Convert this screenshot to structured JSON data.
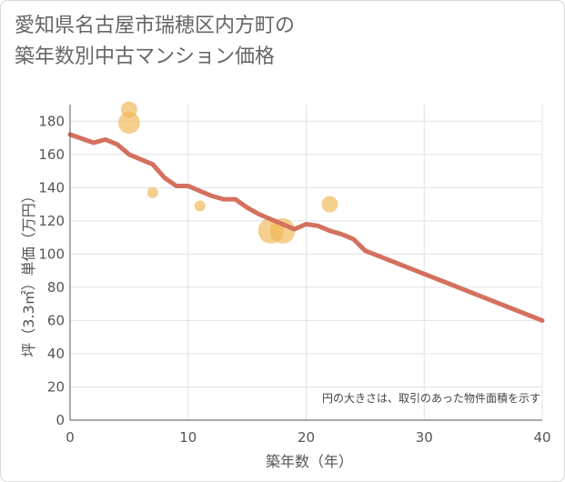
{
  "title_line1": "愛知県名古屋市瑞穂区内方町の",
  "title_line2": "築年数別中古マンション価格",
  "chart_data": {
    "type": "scatter",
    "title": "愛知県名古屋市瑞穂区内方町の築年数別中古マンション価格",
    "xlabel": "築年数（年）",
    "ylabel": "坪（3.3㎡）単価（万円）",
    "xlim": [
      0,
      40
    ],
    "ylim": [
      0,
      190
    ],
    "xticks": [
      0,
      10,
      20,
      30,
      40
    ],
    "yticks": [
      0,
      20,
      40,
      60,
      80,
      100,
      120,
      140,
      160,
      180
    ],
    "grid": true,
    "note": "円の大きさは、取引のあった物件面積を示す",
    "bubbles": [
      {
        "x": 5,
        "y": 187,
        "size": 2
      },
      {
        "x": 5,
        "y": 179,
        "size": 3
      },
      {
        "x": 7,
        "y": 137,
        "size": 1
      },
      {
        "x": 11,
        "y": 129,
        "size": 1
      },
      {
        "x": 17,
        "y": 114,
        "size": 4
      },
      {
        "x": 18,
        "y": 114,
        "size": 4
      },
      {
        "x": 22,
        "y": 130,
        "size": 2
      }
    ],
    "trend": {
      "x": [
        0,
        2,
        3,
        4,
        5,
        6,
        7,
        8,
        9,
        10,
        11,
        12,
        13,
        14,
        15,
        16,
        17,
        18,
        19,
        20,
        21,
        22,
        23,
        24,
        25,
        40
      ],
      "y": [
        172,
        167,
        169,
        166,
        160,
        157,
        154,
        146,
        141,
        141,
        138,
        135,
        133,
        133,
        128,
        124,
        121,
        118,
        115,
        118,
        117,
        114,
        112,
        109,
        102,
        60
      ]
    },
    "colors": {
      "bubble": "#f0b552",
      "trend": "#d4705e",
      "grid": "#dde3ea",
      "axis": "#555555"
    }
  }
}
